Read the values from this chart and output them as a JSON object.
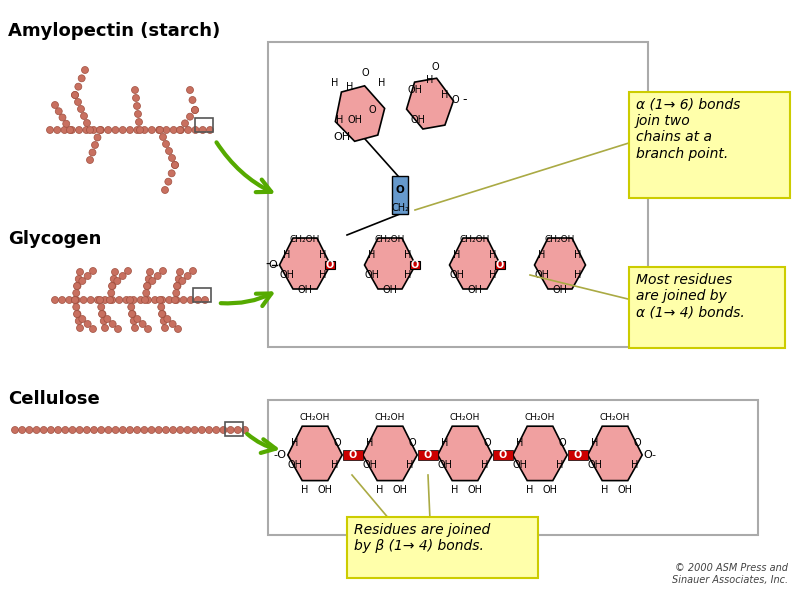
{
  "bg_color": "#ffffff",
  "title_amylopectin": "Amylopectin (starch)",
  "title_glycogen": "Glycogen",
  "title_cellulose": "Cellulose",
  "label_alpha16": "α (1→ 6) bonds\njoin two\nchains at a\nbranch point.",
  "label_alpha14": "Most residues\nare joined by\nα (1→ 4) bonds.",
  "label_beta14": "Residues are joined\nby β (1→ 4) bonds.",
  "copyright": "© 2000 ASM Press and\nSinauer Associates, Inc.",
  "bead_color": "#c87060",
  "bead_edge": "#a05040",
  "pink_fill": "#f0a0a0",
  "pink_dark": "#e07070",
  "red_fill": "#cc0000",
  "blue_fill": "#6699cc",
  "yellow_box": "#ffffaa",
  "yellow_border": "#cccc00",
  "box_border": "#888888",
  "green_arrow": "#55aa00",
  "title_fontsize": 13,
  "label_fontsize": 10
}
